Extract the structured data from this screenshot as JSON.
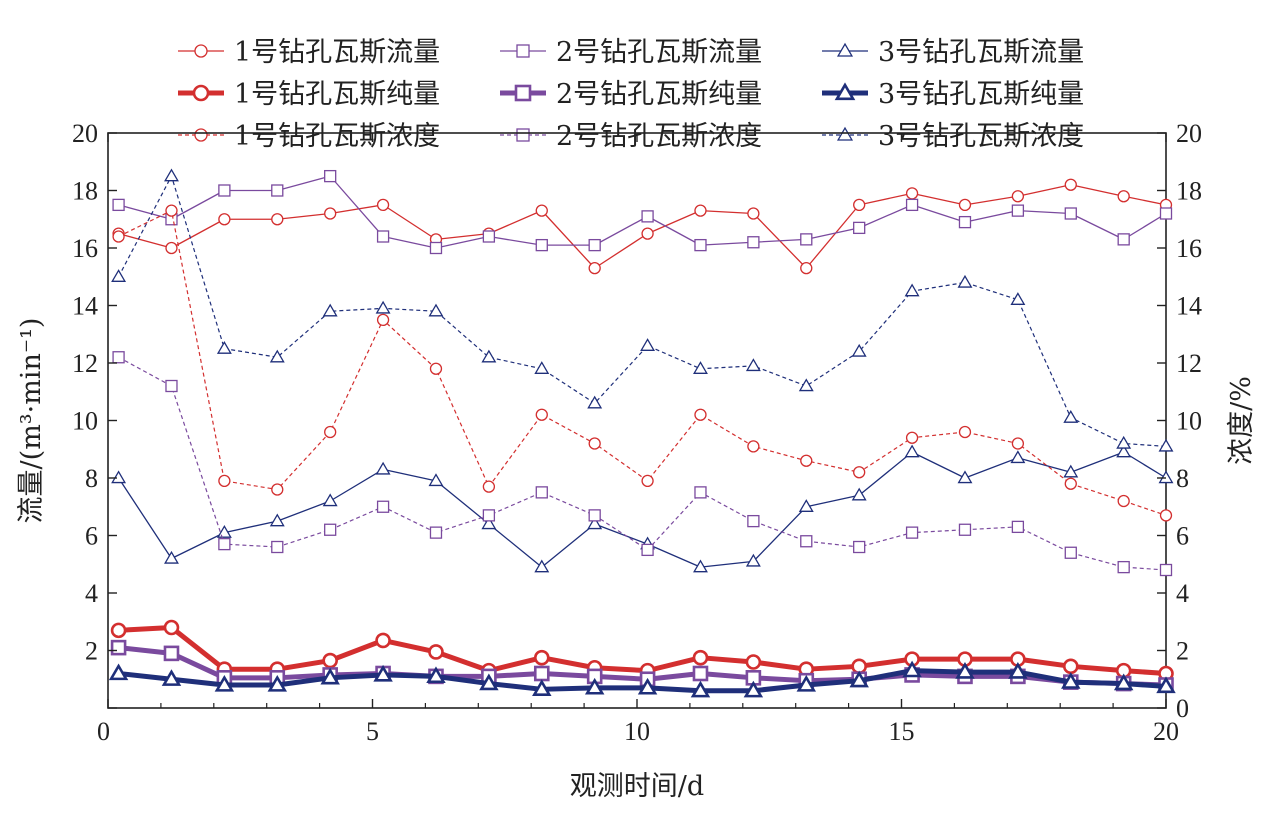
{
  "chart_data": {
    "type": "line",
    "x": [
      0.2,
      1.2,
      2.2,
      3.2,
      4.2,
      5.2,
      6.2,
      7.2,
      8.2,
      9.2,
      10.2,
      11.2,
      12.2,
      13.2,
      14.2,
      15.2,
      16.2,
      17.2,
      18.2,
      19.2,
      20
    ],
    "xlim": [
      0,
      20
    ],
    "xticks": [
      0,
      5,
      10,
      15,
      20
    ],
    "xlabel": "观测时间/d",
    "ylabel_left": "流量/(m³·min⁻¹)",
    "ylabel_right": "浓度/%",
    "ylim": [
      0,
      20
    ],
    "yticks": [
      0,
      2,
      4,
      6,
      8,
      10,
      12,
      14,
      16,
      18,
      20
    ],
    "y2lim": [
      0,
      20
    ],
    "grid": false,
    "legend_position": "top",
    "series": [
      {
        "name": "1号钻孔瓦斯流量",
        "color": "#d32f2f",
        "marker": "circle",
        "style": "thin",
        "axis": "left",
        "values": [
          16.5,
          16.0,
          17.0,
          17.0,
          17.2,
          17.5,
          16.3,
          16.5,
          17.3,
          15.3,
          16.5,
          17.3,
          17.2,
          15.3,
          17.5,
          17.9,
          17.5,
          17.8,
          18.2,
          17.8,
          17.5
        ]
      },
      {
        "name": "2号钻孔瓦斯流量",
        "color": "#7a4a9e",
        "marker": "square",
        "style": "thin",
        "axis": "left",
        "values": [
          17.5,
          17.0,
          18.0,
          18.0,
          18.5,
          16.4,
          16.0,
          16.4,
          16.1,
          16.1,
          17.1,
          16.1,
          16.2,
          16.3,
          16.7,
          17.5,
          16.9,
          17.3,
          17.2,
          16.3,
          17.2
        ]
      },
      {
        "name": "3号钻孔瓦斯流量",
        "color": "#1f2f7a",
        "marker": "triangle",
        "style": "thin",
        "axis": "left",
        "values": [
          8.0,
          5.2,
          6.1,
          6.5,
          7.2,
          8.3,
          7.9,
          6.4,
          4.9,
          6.4,
          5.7,
          4.9,
          5.1,
          7.0,
          7.4,
          8.9,
          8.0,
          8.7,
          8.2,
          8.9,
          8.0
        ]
      },
      {
        "name": "1号钻孔瓦斯纯量",
        "color": "#d32f2f",
        "marker": "circle",
        "style": "thick",
        "axis": "left",
        "values": [
          2.7,
          2.8,
          1.35,
          1.35,
          1.65,
          2.35,
          1.95,
          1.3,
          1.75,
          1.4,
          1.3,
          1.75,
          1.6,
          1.35,
          1.45,
          1.7,
          1.7,
          1.7,
          1.45,
          1.3,
          1.2
        ]
      },
      {
        "name": "2号钻孔瓦斯纯量",
        "color": "#7a4a9e",
        "marker": "square",
        "style": "thick",
        "axis": "left",
        "values": [
          2.1,
          1.9,
          1.05,
          1.05,
          1.15,
          1.2,
          1.1,
          1.1,
          1.2,
          1.1,
          1.0,
          1.2,
          1.05,
          0.95,
          1.0,
          1.15,
          1.1,
          1.1,
          0.9,
          0.85,
          0.8
        ]
      },
      {
        "name": "3号钻孔瓦斯纯量",
        "color": "#1f2f7a",
        "marker": "triangle",
        "style": "thick",
        "axis": "left",
        "values": [
          1.2,
          1.0,
          0.8,
          0.8,
          1.05,
          1.15,
          1.1,
          0.85,
          0.65,
          0.7,
          0.7,
          0.6,
          0.6,
          0.8,
          0.95,
          1.3,
          1.25,
          1.25,
          0.9,
          0.85,
          0.75
        ]
      },
      {
        "name": "1号钻孔瓦斯浓度",
        "color": "#d32f2f",
        "marker": "circle",
        "style": "dashed",
        "axis": "right",
        "values": [
          16.4,
          17.3,
          7.9,
          7.6,
          9.6,
          13.5,
          11.8,
          7.7,
          10.2,
          9.2,
          7.9,
          10.2,
          9.1,
          8.6,
          8.2,
          9.4,
          9.6,
          9.2,
          7.8,
          7.2,
          6.7
        ]
      },
      {
        "name": "2号钻孔瓦斯浓度",
        "color": "#7a4a9e",
        "marker": "square",
        "style": "dashed",
        "axis": "right",
        "values": [
          12.2,
          11.2,
          5.7,
          5.6,
          6.2,
          7.0,
          6.1,
          6.7,
          7.5,
          6.7,
          5.5,
          7.5,
          6.5,
          5.8,
          5.6,
          6.1,
          6.2,
          6.3,
          5.4,
          4.9,
          4.8
        ]
      },
      {
        "name": "3号钻孔瓦斯浓度",
        "color": "#1f2f7a",
        "marker": "triangle",
        "style": "dashed",
        "axis": "right",
        "values": [
          15.0,
          18.5,
          12.5,
          12.2,
          13.8,
          13.9,
          13.8,
          12.2,
          11.8,
          10.6,
          12.6,
          11.8,
          11.9,
          11.2,
          12.4,
          14.5,
          14.8,
          14.2,
          10.1,
          9.2,
          9.1
        ]
      }
    ]
  }
}
